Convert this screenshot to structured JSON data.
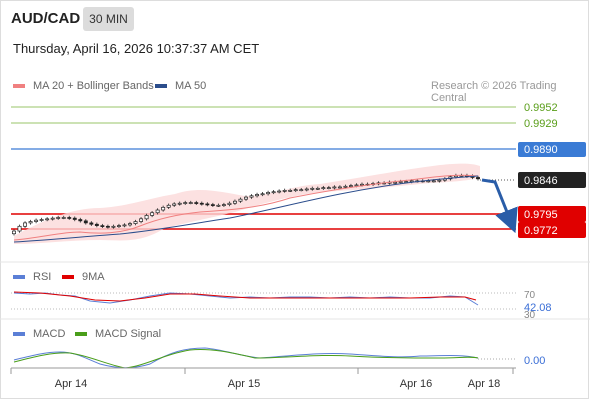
{
  "header": {
    "pair": "AUD/CAD",
    "timeframe": "30 MIN",
    "datetime": "Thursday, April 16, 2026 10:37:37 AM CET"
  },
  "main_legend": {
    "ma20_label": "MA 20 + Bollinger Bands",
    "ma50_label": "MA 50",
    "copyright": "Research © 2026 Trading Central"
  },
  "price_levels": {
    "resistance_2": "0.9952",
    "resistance_1": "0.9929",
    "pivot": "0.9890",
    "last": "0.9846",
    "support_1": "0.9795",
    "support_2": "0.9772"
  },
  "rsi_panel": {
    "rsi_label": "RSI",
    "ma9_label": "9MA",
    "level_70": "70",
    "level_30": "30",
    "value": "42.08"
  },
  "macd_panel": {
    "macd_label": "MACD",
    "signal_label": "MACD Signal",
    "value": "0.00"
  },
  "x_axis": {
    "ticks": [
      "Apr 14",
      "Apr 15",
      "Apr 16",
      "Apr 18"
    ]
  },
  "colors": {
    "green_level": "#5a9e1a",
    "blue_level": "#3a7bd5",
    "red_level": "#e00000",
    "ma20": "#f08080",
    "ma50": "#2b4d8c",
    "rsi": "#5b7fd6",
    "macd_signal": "#4a9e1a"
  },
  "chart_data": {
    "type": "candlestick",
    "title": "AUD/CAD",
    "timeframe": "30 MIN",
    "horizontal_levels": [
      0.9952,
      0.9929,
      0.989,
      0.9795,
      0.9772
    ],
    "last_price": 0.9846,
    "x_tick_labels": [
      "Apr 14",
      "Apr 15",
      "Apr 16",
      "Apr 18"
    ],
    "close_series": [
      0.9769,
      0.9776,
      0.9781,
      0.9783,
      0.9785,
      0.9786,
      0.9787,
      0.9788,
      0.9789,
      0.9789,
      0.9788,
      0.9786,
      0.9784,
      0.9781,
      0.9779,
      0.9777,
      0.9776,
      0.9775,
      0.9776,
      0.9777,
      0.9778,
      0.978,
      0.9783,
      0.9787,
      0.9792,
      0.9796,
      0.98,
      0.9804,
      0.9807,
      0.9809,
      0.981,
      0.9811,
      0.9811,
      0.981,
      0.9809,
      0.9808,
      0.9807,
      0.9807,
      0.9808,
      0.981,
      0.9813,
      0.9816,
      0.9819,
      0.9821,
      0.9823,
      0.9824,
      0.9826,
      0.9827,
      0.9828,
      0.9829,
      0.9829,
      0.983,
      0.983,
      0.9831,
      0.9832,
      0.9832,
      0.9833,
      0.9833,
      0.9834,
      0.9834,
      0.9835,
      0.9836,
      0.9837,
      0.9838,
      0.9838,
      0.9839,
      0.984,
      0.984,
      0.9841,
      0.9841,
      0.9842,
      0.9842,
      0.9843,
      0.9843,
      0.9843,
      0.9843,
      0.9843,
      0.9844,
      0.9846,
      0.9849,
      0.9851,
      0.9851,
      0.985,
      0.9848,
      0.9846
    ],
    "projection": {
      "from": 0.9846,
      "to": 0.9772
    },
    "rsi_levels": [
      70,
      30
    ],
    "rsi_last": 42.08,
    "macd_last": 0.0
  }
}
